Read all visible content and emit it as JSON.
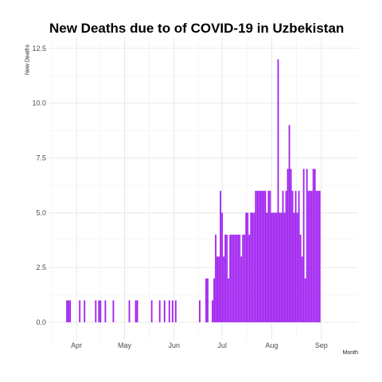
{
  "chart_data": {
    "type": "bar",
    "title": "New Deaths due to of COVID-19 in Uzbekistan",
    "xlabel": "Month",
    "ylabel": "New Deaths",
    "ylim": [
      -0.8,
      13.0
    ],
    "yticks": [
      "0.0",
      "2.5",
      "5.0",
      "7.5",
      "10.0",
      "12.5"
    ],
    "ytick_values": [
      0,
      2.5,
      5,
      7.5,
      10,
      12.5
    ],
    "xticks": [
      "Apr",
      "May",
      "Jun",
      "Jul",
      "Aug",
      "Sep"
    ],
    "xtick_dates": [
      "2020-04-01",
      "2020-05-01",
      "2020-06-01",
      "2020-07-01",
      "2020-08-01",
      "2020-09-01"
    ],
    "xlim": [
      "2020-03-15",
      "2020-09-24"
    ],
    "grid": true,
    "bar_color": "#a020f0",
    "series": [
      {
        "values": [
          [
            "2020-03-26",
            1
          ],
          [
            "2020-03-27",
            1
          ],
          [
            "2020-03-28",
            1
          ],
          [
            "2020-04-03",
            1
          ],
          [
            "2020-04-06",
            1
          ],
          [
            "2020-04-13",
            1
          ],
          [
            "2020-04-15",
            1
          ],
          [
            "2020-04-16",
            1
          ],
          [
            "2020-04-19",
            1
          ],
          [
            "2020-04-24",
            1
          ],
          [
            "2020-05-04",
            1
          ],
          [
            "2020-05-08",
            1
          ],
          [
            "2020-05-09",
            1
          ],
          [
            "2020-05-18",
            1
          ],
          [
            "2020-05-23",
            1
          ],
          [
            "2020-05-26",
            1
          ],
          [
            "2020-05-29",
            1
          ],
          [
            "2020-05-31",
            1
          ],
          [
            "2020-06-02",
            1
          ],
          [
            "2020-06-17",
            1
          ],
          [
            "2020-06-21",
            2
          ],
          [
            "2020-06-22",
            2
          ],
          [
            "2020-06-25",
            1
          ],
          [
            "2020-06-26",
            2
          ],
          [
            "2020-06-27",
            4
          ],
          [
            "2020-06-28",
            3
          ],
          [
            "2020-06-29",
            3
          ],
          [
            "2020-06-30",
            6
          ],
          [
            "2020-07-01",
            5
          ],
          [
            "2020-07-02",
            3
          ],
          [
            "2020-07-03",
            4
          ],
          [
            "2020-07-04",
            4
          ],
          [
            "2020-07-05",
            2
          ],
          [
            "2020-07-06",
            4
          ],
          [
            "2020-07-07",
            4
          ],
          [
            "2020-07-08",
            4
          ],
          [
            "2020-07-09",
            4
          ],
          [
            "2020-07-10",
            4
          ],
          [
            "2020-07-11",
            4
          ],
          [
            "2020-07-12",
            4
          ],
          [
            "2020-07-13",
            3
          ],
          [
            "2020-07-14",
            4
          ],
          [
            "2020-07-15",
            4
          ],
          [
            "2020-07-16",
            5
          ],
          [
            "2020-07-17",
            5
          ],
          [
            "2020-07-18",
            4
          ],
          [
            "2020-07-19",
            5
          ],
          [
            "2020-07-20",
            5
          ],
          [
            "2020-07-21",
            5
          ],
          [
            "2020-07-22",
            6
          ],
          [
            "2020-07-23",
            6
          ],
          [
            "2020-07-24",
            6
          ],
          [
            "2020-07-25",
            6
          ],
          [
            "2020-07-26",
            6
          ],
          [
            "2020-07-27",
            6
          ],
          [
            "2020-07-28",
            6
          ],
          [
            "2020-07-29",
            5
          ],
          [
            "2020-07-30",
            6
          ],
          [
            "2020-07-31",
            6
          ],
          [
            "2020-08-01",
            5
          ],
          [
            "2020-08-02",
            5
          ],
          [
            "2020-08-03",
            5
          ],
          [
            "2020-08-04",
            5
          ],
          [
            "2020-08-05",
            12
          ],
          [
            "2020-08-06",
            5
          ],
          [
            "2020-08-07",
            5
          ],
          [
            "2020-08-08",
            6
          ],
          [
            "2020-08-09",
            5
          ],
          [
            "2020-08-10",
            6
          ],
          [
            "2020-08-11",
            7
          ],
          [
            "2020-08-12",
            9
          ],
          [
            "2020-08-13",
            7
          ],
          [
            "2020-08-14",
            6
          ],
          [
            "2020-08-15",
            5
          ],
          [
            "2020-08-16",
            6
          ],
          [
            "2020-08-17",
            5
          ],
          [
            "2020-08-18",
            6
          ],
          [
            "2020-08-19",
            4
          ],
          [
            "2020-08-20",
            3
          ],
          [
            "2020-08-21",
            7
          ],
          [
            "2020-08-22",
            2
          ],
          [
            "2020-08-23",
            7
          ],
          [
            "2020-08-24",
            6
          ],
          [
            "2020-08-25",
            6
          ],
          [
            "2020-08-26",
            6
          ],
          [
            "2020-08-27",
            7
          ],
          [
            "2020-08-28",
            7
          ],
          [
            "2020-08-29",
            6
          ],
          [
            "2020-08-30",
            6
          ],
          [
            "2020-08-31",
            6
          ]
        ]
      }
    ]
  }
}
